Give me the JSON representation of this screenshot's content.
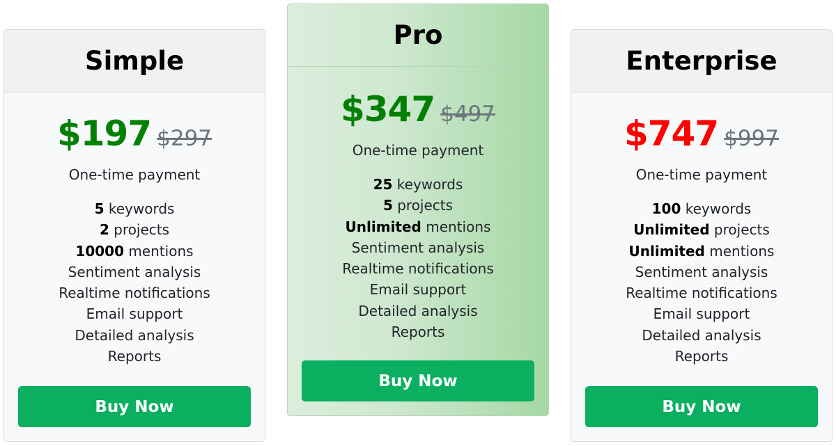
{
  "plans": [
    {
      "name": "Simple",
      "price": "$197",
      "old_price": "$297",
      "price_color": "#008000",
      "payment": "One-time payment",
      "features": [
        [
          "5",
          " keywords"
        ],
        [
          "2",
          " projects"
        ],
        [
          "10000",
          " mentions"
        ],
        [
          "",
          "Sentiment analysis"
        ],
        [
          "",
          "Realtime notifications"
        ],
        [
          "",
          "Email support"
        ],
        [
          "",
          "Detailed analysis"
        ],
        [
          "",
          "Reports"
        ]
      ],
      "button": "Buy Now"
    },
    {
      "name": "Pro",
      "price": "$347",
      "old_price": "$497",
      "price_color": "#008000",
      "payment": "One-time payment",
      "features": [
        [
          "25",
          " keywords"
        ],
        [
          "5",
          " projects"
        ],
        [
          "Unlimited",
          " mentions"
        ],
        [
          "",
          "Sentiment analysis"
        ],
        [
          "",
          "Realtime notifications"
        ],
        [
          "",
          "Email support"
        ],
        [
          "",
          "Detailed analysis"
        ],
        [
          "",
          "Reports"
        ]
      ],
      "button": "Buy Now"
    },
    {
      "name": "Enterprise",
      "price": "$747",
      "old_price": "$997",
      "price_color": "#ff0000",
      "payment": "One-time payment",
      "features": [
        [
          "100",
          " keywords"
        ],
        [
          "Unlimited",
          " projects"
        ],
        [
          "Unlimited",
          " mentions"
        ],
        [
          "",
          "Sentiment analysis"
        ],
        [
          "",
          "Realtime notifications"
        ],
        [
          "",
          "Email support"
        ],
        [
          "",
          "Detailed analysis"
        ],
        [
          "",
          "Reports"
        ]
      ],
      "button": "Buy Now"
    }
  ]
}
